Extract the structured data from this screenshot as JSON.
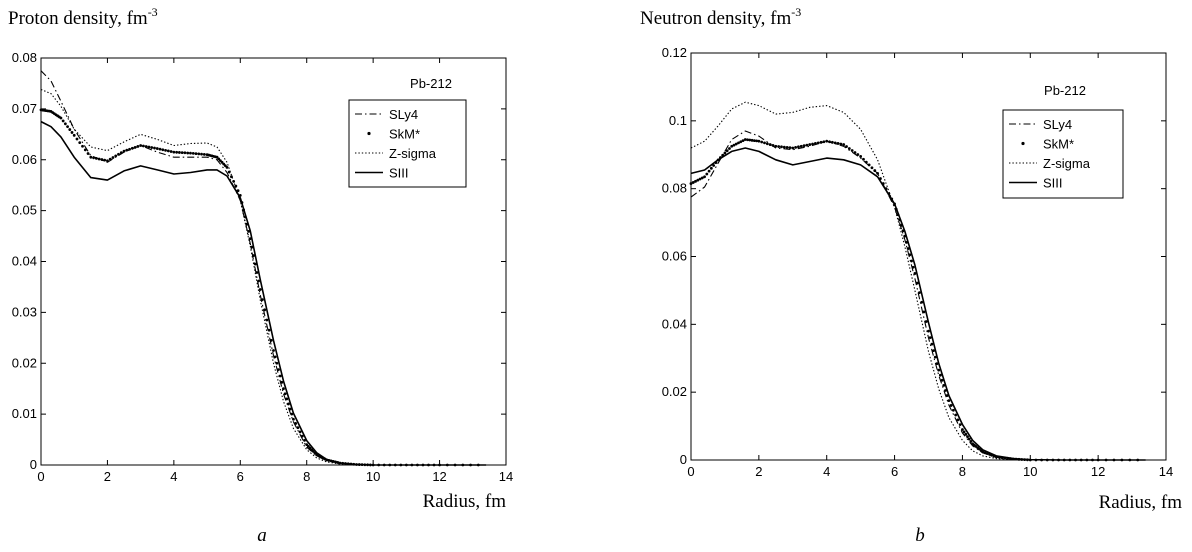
{
  "chart_data": [
    {
      "type": "line",
      "panel_label": "a",
      "ylabel": "Proton density, fm",
      "ylabel_exp": "-3",
      "xlabel": "Radius, fm",
      "annotation": "Pb-212",
      "xlim": [
        0,
        14
      ],
      "ylim": [
        0,
        0.08
      ],
      "xticks": [
        0,
        2,
        4,
        6,
        8,
        10,
        12,
        14
      ],
      "yticks": [
        0,
        0.01,
        0.02,
        0.03,
        0.04,
        0.05,
        0.06,
        0.07,
        0.08
      ],
      "xtick_labels": [
        "0",
        "2",
        "4",
        "6",
        "8",
        "10",
        "12",
        "14"
      ],
      "ytick_labels": [
        "0",
        "0.01",
        "0.02",
        "0.03",
        "0.04",
        "0.05",
        "0.06",
        "0.07",
        "0.08"
      ],
      "legend_position": "right, below annotation",
      "series": [
        {
          "name": "SLy4",
          "style": "dashdot",
          "x": [
            0,
            0.3,
            0.6,
            1.0,
            1.5,
            2.0,
            2.5,
            3.0,
            3.5,
            4.0,
            4.5,
            5.0,
            5.3,
            5.6,
            6.0,
            6.3,
            6.6,
            7.0,
            7.3,
            7.6,
            8.0,
            8.3,
            8.6,
            9.0,
            9.5,
            10.0,
            11.0,
            12.0,
            13.4
          ],
          "y": [
            0.0775,
            0.0755,
            0.0715,
            0.066,
            0.0608,
            0.0595,
            0.0615,
            0.0628,
            0.0615,
            0.0605,
            0.0605,
            0.0605,
            0.06,
            0.0575,
            0.052,
            0.0435,
            0.0335,
            0.0215,
            0.014,
            0.0085,
            0.0035,
            0.0018,
            0.0009,
            0.0004,
            0.0001,
            0.0,
            0.0,
            0.0,
            0.0
          ]
        },
        {
          "name": "SkM*",
          "style": "dots",
          "x": [
            0,
            0.3,
            0.6,
            1.0,
            1.5,
            2.0,
            2.5,
            3.0,
            3.5,
            4.0,
            4.5,
            5.0,
            5.3,
            5.6,
            6.0,
            6.3,
            6.6,
            7.0,
            7.3,
            7.6,
            8.0,
            8.3,
            8.6,
            9.0,
            9.5,
            10.0,
            11.0,
            12.0,
            13.4
          ],
          "y": [
            0.0698,
            0.0695,
            0.0682,
            0.0648,
            0.0605,
            0.0598,
            0.0617,
            0.0628,
            0.0622,
            0.0615,
            0.0613,
            0.061,
            0.0605,
            0.0585,
            0.053,
            0.0445,
            0.0345,
            0.0225,
            0.015,
            0.009,
            0.004,
            0.002,
            0.001,
            0.0004,
            0.0001,
            0.0,
            0.0,
            0.0,
            0.0
          ]
        },
        {
          "name": "Z-sigma",
          "style": "dotted",
          "x": [
            0,
            0.3,
            0.6,
            1.0,
            1.5,
            2.0,
            2.5,
            3.0,
            3.5,
            4.0,
            4.5,
            5.0,
            5.3,
            5.6,
            6.0,
            6.3,
            6.6,
            7.0,
            7.3,
            7.6,
            8.0,
            8.3,
            8.6,
            9.0,
            9.5,
            10.0,
            11.0,
            12.0,
            13.4
          ],
          "y": [
            0.0738,
            0.073,
            0.0705,
            0.066,
            0.0625,
            0.0618,
            0.0635,
            0.065,
            0.064,
            0.0628,
            0.0632,
            0.0633,
            0.0625,
            0.0595,
            0.052,
            0.043,
            0.0325,
            0.02,
            0.0125,
            0.0072,
            0.003,
            0.0014,
            0.0006,
            0.0002,
            0.0,
            0.0,
            0.0,
            0.0,
            0.0
          ]
        },
        {
          "name": "SIII",
          "style": "solid",
          "x": [
            0,
            0.3,
            0.6,
            1.0,
            1.5,
            2.0,
            2.5,
            3.0,
            3.5,
            4.0,
            4.5,
            5.0,
            5.3,
            5.6,
            6.0,
            6.3,
            6.6,
            7.0,
            7.3,
            7.6,
            8.0,
            8.3,
            8.6,
            9.0,
            9.5,
            10.0,
            11.0,
            12.0,
            13.4
          ],
          "y": [
            0.0675,
            0.0665,
            0.0645,
            0.0605,
            0.0565,
            0.056,
            0.0578,
            0.0588,
            0.058,
            0.0572,
            0.0575,
            0.058,
            0.058,
            0.0568,
            0.0525,
            0.046,
            0.0365,
            0.0245,
            0.0165,
            0.0102,
            0.0048,
            0.0024,
            0.0011,
            0.0004,
            0.0001,
            0.0,
            0.0,
            0.0,
            0.0
          ]
        }
      ]
    },
    {
      "type": "line",
      "panel_label": "b",
      "ylabel": "Neutron density, fm",
      "ylabel_exp": "-3",
      "xlabel": "Radius, fm",
      "annotation": "Pb-212",
      "xlim": [
        0,
        14
      ],
      "ylim": [
        0,
        0.12
      ],
      "xticks": [
        0,
        2,
        4,
        6,
        8,
        10,
        12,
        14
      ],
      "yticks": [
        0,
        0.02,
        0.04,
        0.06,
        0.08,
        0.1,
        0.12
      ],
      "xtick_labels": [
        "0",
        "2",
        "4",
        "6",
        "8",
        "10",
        "12",
        "14"
      ],
      "ytick_labels": [
        "0",
        "0.02",
        "0.04",
        "0.06",
        "0.08",
        "0.1",
        "0.12"
      ],
      "legend_position": "right, below annotation",
      "series": [
        {
          "name": "SLy4",
          "style": "dashdot",
          "x": [
            0,
            0.4,
            0.8,
            1.2,
            1.6,
            2.0,
            2.5,
            3.0,
            3.5,
            4.0,
            4.5,
            5.0,
            5.5,
            6.0,
            6.3,
            6.6,
            7.0,
            7.3,
            7.6,
            8.0,
            8.3,
            8.6,
            9.0,
            9.5,
            10.0,
            11.0,
            12.0,
            13.4
          ],
          "y": [
            0.0775,
            0.0805,
            0.0875,
            0.0945,
            0.097,
            0.0955,
            0.092,
            0.0915,
            0.0925,
            0.094,
            0.0925,
            0.089,
            0.0845,
            0.0745,
            0.065,
            0.0535,
            0.036,
            0.025,
            0.0162,
            0.008,
            0.0042,
            0.0021,
            0.0008,
            0.0002,
            0.0,
            0.0,
            0.0,
            0.0
          ]
        },
        {
          "name": "SkM*",
          "style": "dots",
          "x": [
            0,
            0.4,
            0.8,
            1.2,
            1.6,
            2.0,
            2.5,
            3.0,
            3.5,
            4.0,
            4.5,
            5.0,
            5.5,
            6.0,
            6.3,
            6.6,
            7.0,
            7.3,
            7.6,
            8.0,
            8.3,
            8.6,
            9.0,
            9.5,
            10.0,
            11.0,
            12.0,
            13.4
          ],
          "y": [
            0.0815,
            0.0835,
            0.0885,
            0.0925,
            0.0945,
            0.094,
            0.0925,
            0.092,
            0.093,
            0.094,
            0.093,
            0.0895,
            0.0845,
            0.0755,
            0.066,
            0.055,
            0.038,
            0.0265,
            0.0175,
            0.009,
            0.0048,
            0.0024,
            0.0009,
            0.0003,
            0.0,
            0.0,
            0.0,
            0.0
          ]
        },
        {
          "name": "Z-sigma",
          "style": "dotted",
          "x": [
            0,
            0.4,
            0.8,
            1.2,
            1.6,
            2.0,
            2.5,
            3.0,
            3.5,
            4.0,
            4.5,
            5.0,
            5.5,
            6.0,
            6.3,
            6.6,
            7.0,
            7.3,
            7.6,
            8.0,
            8.3,
            8.6,
            9.0,
            9.5,
            10.0,
            11.0,
            12.0,
            13.4
          ],
          "y": [
            0.092,
            0.094,
            0.0985,
            0.1035,
            0.1055,
            0.1045,
            0.102,
            0.1025,
            0.104,
            0.1045,
            0.1025,
            0.0975,
            0.0885,
            0.0745,
            0.063,
            0.05,
            0.032,
            0.021,
            0.0125,
            0.0058,
            0.0027,
            0.0012,
            0.0004,
            0.0001,
            0.0,
            0.0,
            0.0,
            0.0
          ]
        },
        {
          "name": "SIII",
          "style": "solid",
          "x": [
            0,
            0.4,
            0.8,
            1.2,
            1.6,
            2.0,
            2.5,
            3.0,
            3.5,
            4.0,
            4.5,
            5.0,
            5.5,
            6.0,
            6.3,
            6.6,
            7.0,
            7.3,
            7.6,
            8.0,
            8.3,
            8.6,
            9.0,
            9.5,
            10.0,
            11.0,
            12.0,
            13.4
          ],
          "y": [
            0.0845,
            0.0855,
            0.0885,
            0.091,
            0.092,
            0.091,
            0.0885,
            0.087,
            0.088,
            0.089,
            0.0885,
            0.087,
            0.0835,
            0.0755,
            0.0675,
            0.0575,
            0.0405,
            0.0285,
            0.019,
            0.0105,
            0.0058,
            0.003,
            0.0012,
            0.0004,
            0.0001,
            0.0,
            0.0,
            0.0
          ]
        }
      ]
    }
  ]
}
